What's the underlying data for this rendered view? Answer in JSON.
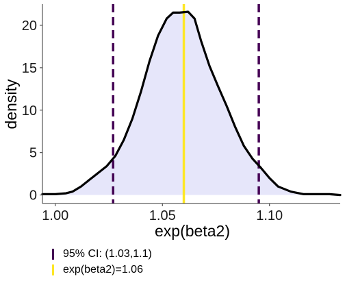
{
  "chart_data": {
    "type": "area",
    "xlabel": "exp(beta2)",
    "ylabel": "density",
    "xlim": [
      0.994,
      1.133
    ],
    "ylim": [
      -1.0,
      22.5
    ],
    "x_ticks": [
      1.0,
      1.05,
      1.1
    ],
    "x_tick_labels": [
      "1.00",
      "1.05",
      "1.10"
    ],
    "y_ticks": [
      0,
      5,
      10,
      15,
      20
    ],
    "y_tick_labels": [
      "0",
      "5",
      "10",
      "15",
      "20"
    ],
    "grid": false,
    "legend_position": "bottom-left",
    "series": [
      {
        "name": "",
        "color": "#000000",
        "fill": "#e6e6fa",
        "x": [
          0.994,
          1.0,
          1.005,
          1.008,
          1.012,
          1.016,
          1.02,
          1.024,
          1.028,
          1.032,
          1.036,
          1.04,
          1.044,
          1.048,
          1.052,
          1.055,
          1.058,
          1.062,
          1.065,
          1.068,
          1.072,
          1.076,
          1.08,
          1.084,
          1.088,
          1.092,
          1.096,
          1.1,
          1.104,
          1.11,
          1.116,
          1.122,
          1.128,
          1.133
        ],
        "y": [
          0.1,
          0.1,
          0.2,
          0.4,
          1.0,
          1.8,
          2.6,
          3.4,
          4.6,
          6.5,
          9.0,
          12.2,
          15.8,
          18.8,
          20.8,
          21.5,
          21.5,
          21.6,
          20.8,
          18.2,
          15.2,
          12.8,
          10.5,
          8.0,
          5.8,
          4.3,
          3.2,
          2.0,
          1.0,
          0.4,
          0.1,
          0.1,
          0.1,
          0.0
        ]
      }
    ],
    "reference_lines": [
      {
        "label": "95% CI: (1.03,1.1)",
        "color": "#440154",
        "style": "dashed",
        "x": [
          1.027,
          1.095
        ]
      },
      {
        "label": "exp(beta2)=1.06",
        "color": "#fde725",
        "style": "solid",
        "x": [
          1.06
        ]
      }
    ]
  }
}
